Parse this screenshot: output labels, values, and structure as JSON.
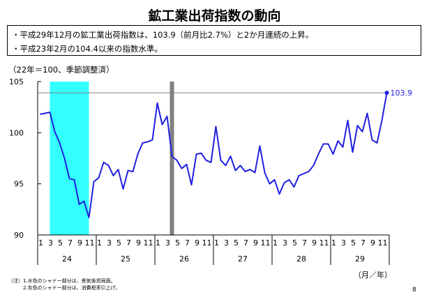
{
  "header": {
    "title": "鉱工業出荷指数の動向"
  },
  "notes": [
    "・平成29年12月の鉱工業出荷指数は、103.9（前月比2.7%）と2か月連続の上昇。",
    "・平成23年2月の104.4以来の指数水準。"
  ],
  "footnotes": [
    "（注）1.水色のシャドー部分は、景気後退局面。",
    "2.灰色のシャドー部分は、消費税率引上げ。"
  ],
  "page_number": "8",
  "colors": {
    "line": "#1f1fe0",
    "recession": "#33ffff",
    "tax": "#808080",
    "refline": "#808080"
  },
  "chart_data": {
    "type": "line",
    "title": "",
    "ylabel": "（22年＝100、季節調整済）",
    "xlabel": "（月／年）",
    "ylim": [
      90,
      105
    ],
    "yticks": [
      90,
      95,
      100,
      105
    ],
    "month_tick_labels": [
      "1",
      "3",
      "5",
      "7",
      "9",
      "11",
      "1",
      "3",
      "5",
      "7",
      "9",
      "11",
      "1",
      "3",
      "5",
      "7",
      "9",
      "11",
      "1",
      "3",
      "5",
      "7",
      "9",
      "11",
      "1",
      "3",
      "5",
      "7",
      "9",
      "11",
      "1",
      "3",
      "5",
      "7",
      "9",
      "11"
    ],
    "year_labels": [
      "24",
      "25",
      "26",
      "27",
      "28",
      "29"
    ],
    "series": [
      {
        "values": [
          101.8,
          101.9,
          102.0,
          100.1,
          99.0,
          97.5,
          95.5,
          95.4,
          93.0,
          93.3,
          91.7,
          95.2,
          95.6,
          97.1,
          96.8,
          95.8,
          96.4,
          94.5,
          96.3,
          96.2,
          97.9,
          99.0,
          99.1,
          99.3,
          102.9,
          100.8,
          101.6,
          97.7,
          97.3,
          96.5,
          96.9,
          94.9,
          97.9,
          98.0,
          97.3,
          97.1,
          100.6,
          97.3,
          96.8,
          97.7,
          96.3,
          96.8,
          96.2,
          96.4,
          96.1,
          98.7,
          96.1,
          95.0,
          95.4,
          94.0,
          95.1,
          95.4,
          94.7,
          95.8,
          96.0,
          96.2,
          96.8,
          97.9,
          98.9,
          98.9,
          97.9,
          99.2,
          98.6,
          101.2,
          98.1,
          100.7,
          100.1,
          101.9,
          99.3,
          99.0,
          101.2,
          103.9
        ]
      }
    ],
    "reference_line": 103.9,
    "end_label": "103.9",
    "shaded_regions": [
      {
        "type": "recession",
        "from_index": 2,
        "to_index": 10
      },
      {
        "type": "tax",
        "from_index": 27,
        "to_index": 27
      }
    ]
  }
}
